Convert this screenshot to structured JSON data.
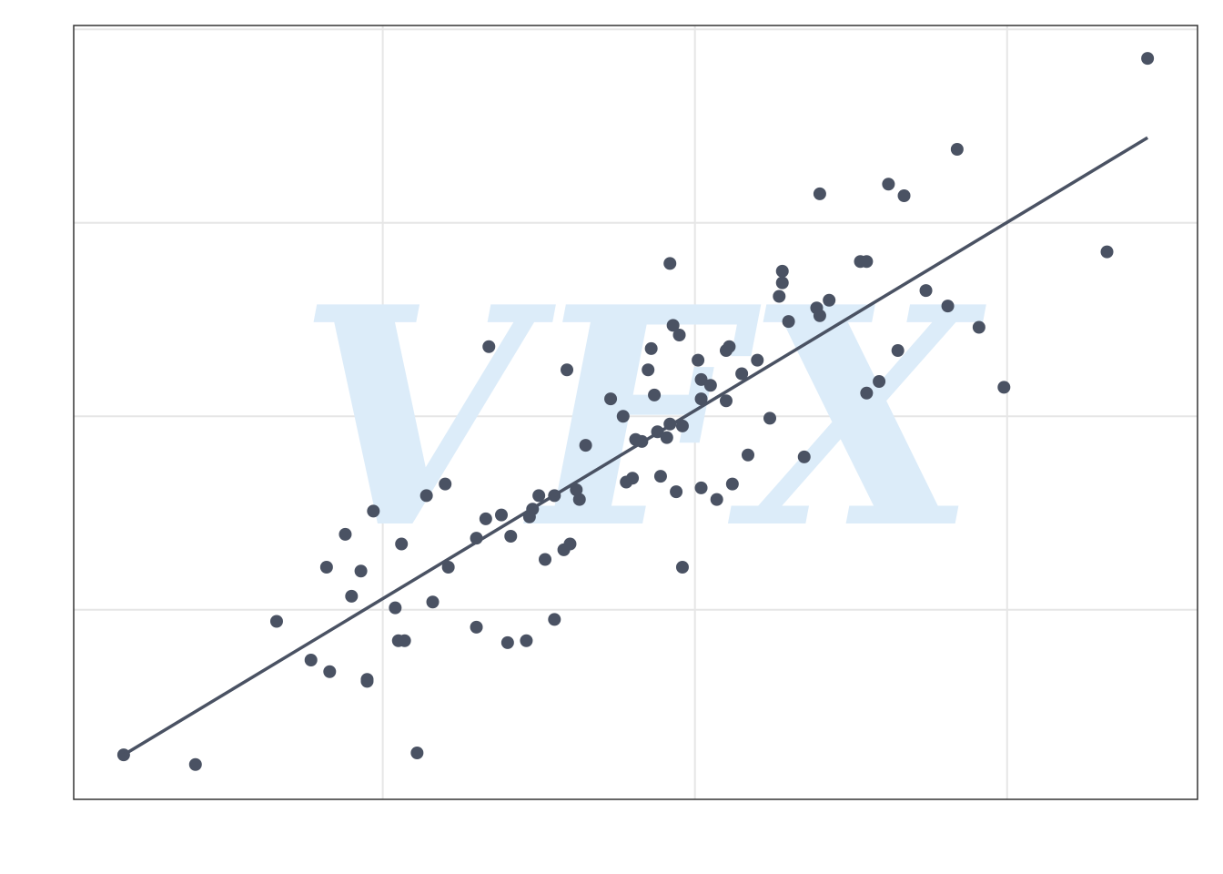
{
  "chart_data": {
    "type": "scatter",
    "watermark": "VFX",
    "xlim": [
      -1.99,
      1.61
    ],
    "ylim": [
      -1.98,
      2.02
    ],
    "xticks": [
      -1,
      0,
      1
    ],
    "yticks": [
      -1,
      0,
      1,
      2
    ],
    "grid": true,
    "points": {
      "color": "#4a5263",
      "x": [
        -1.83,
        -1.6,
        -1.34,
        -1.23,
        -1.18,
        -1.17,
        -1.12,
        -1.1,
        -1.07,
        -1.05,
        -1.05,
        -1.03,
        -0.96,
        -0.95,
        -0.93,
        -0.94,
        -0.89,
        -0.86,
        -0.84,
        -0.8,
        -0.79,
        -0.7,
        -0.7,
        -0.67,
        -0.66,
        -0.62,
        -0.6,
        -0.59,
        -0.54,
        -0.53,
        -0.52,
        -0.5,
        -0.48,
        -0.45,
        -0.45,
        -0.41,
        -0.42,
        -0.4,
        -0.38,
        -0.37,
        -0.35,
        -0.27,
        -0.23,
        -0.22,
        -0.2,
        -0.19,
        -0.17,
        -0.15,
        -0.14,
        -0.13,
        -0.12,
        -0.11,
        -0.09,
        -0.08,
        -0.08,
        -0.07,
        -0.06,
        -0.05,
        -0.04,
        -0.04,
        0.01,
        0.02,
        0.02,
        0.02,
        0.05,
        0.07,
        0.1,
        0.1,
        0.11,
        0.12,
        0.15,
        0.17,
        0.2,
        0.24,
        0.27,
        0.28,
        0.28,
        0.3,
        0.35,
        0.39,
        0.4,
        0.4,
        0.43,
        0.53,
        0.55,
        0.55,
        0.59,
        0.62,
        0.65,
        0.67,
        0.74,
        0.81,
        0.84,
        0.91,
        0.99,
        1.32,
        1.45
      ],
      "y": [
        -1.75,
        -1.8,
        -1.06,
        -1.26,
        -0.78,
        -1.32,
        -0.61,
        -0.93,
        -0.8,
        -1.36,
        -1.37,
        -0.49,
        -0.99,
        -1.16,
        -1.16,
        -0.66,
        -1.74,
        -0.41,
        -0.96,
        -0.35,
        -0.78,
        -0.63,
        -1.09,
        -0.53,
        0.36,
        -0.51,
        -1.17,
        -0.62,
        -1.16,
        -0.52,
        -0.48,
        -0.41,
        -0.74,
        -0.41,
        -1.05,
        0.24,
        -0.69,
        -0.66,
        -0.38,
        -0.43,
        -0.15,
        0.09,
        0.0,
        -0.34,
        -0.32,
        -0.12,
        -0.13,
        0.24,
        0.35,
        0.11,
        -0.08,
        -0.31,
        -0.11,
        0.79,
        -0.04,
        0.47,
        -0.39,
        0.42,
        -0.05,
        -0.78,
        0.29,
        0.19,
        0.09,
        -0.37,
        0.16,
        -0.43,
        0.34,
        0.08,
        0.36,
        -0.35,
        0.22,
        -0.2,
        0.29,
        -0.01,
        0.62,
        0.69,
        0.75,
        0.49,
        -0.21,
        0.56,
        1.15,
        0.52,
        0.6,
        0.8,
        0.8,
        0.12,
        0.18,
        1.2,
        0.34,
        1.14,
        0.65,
        0.57,
        1.38,
        0.46,
        0.15,
        0.85,
        1.85
      ]
    },
    "fit_line": {
      "color": "#4a5263",
      "x": [
        -1.83,
        1.45
      ],
      "y": [
        -1.75,
        1.44
      ]
    }
  }
}
